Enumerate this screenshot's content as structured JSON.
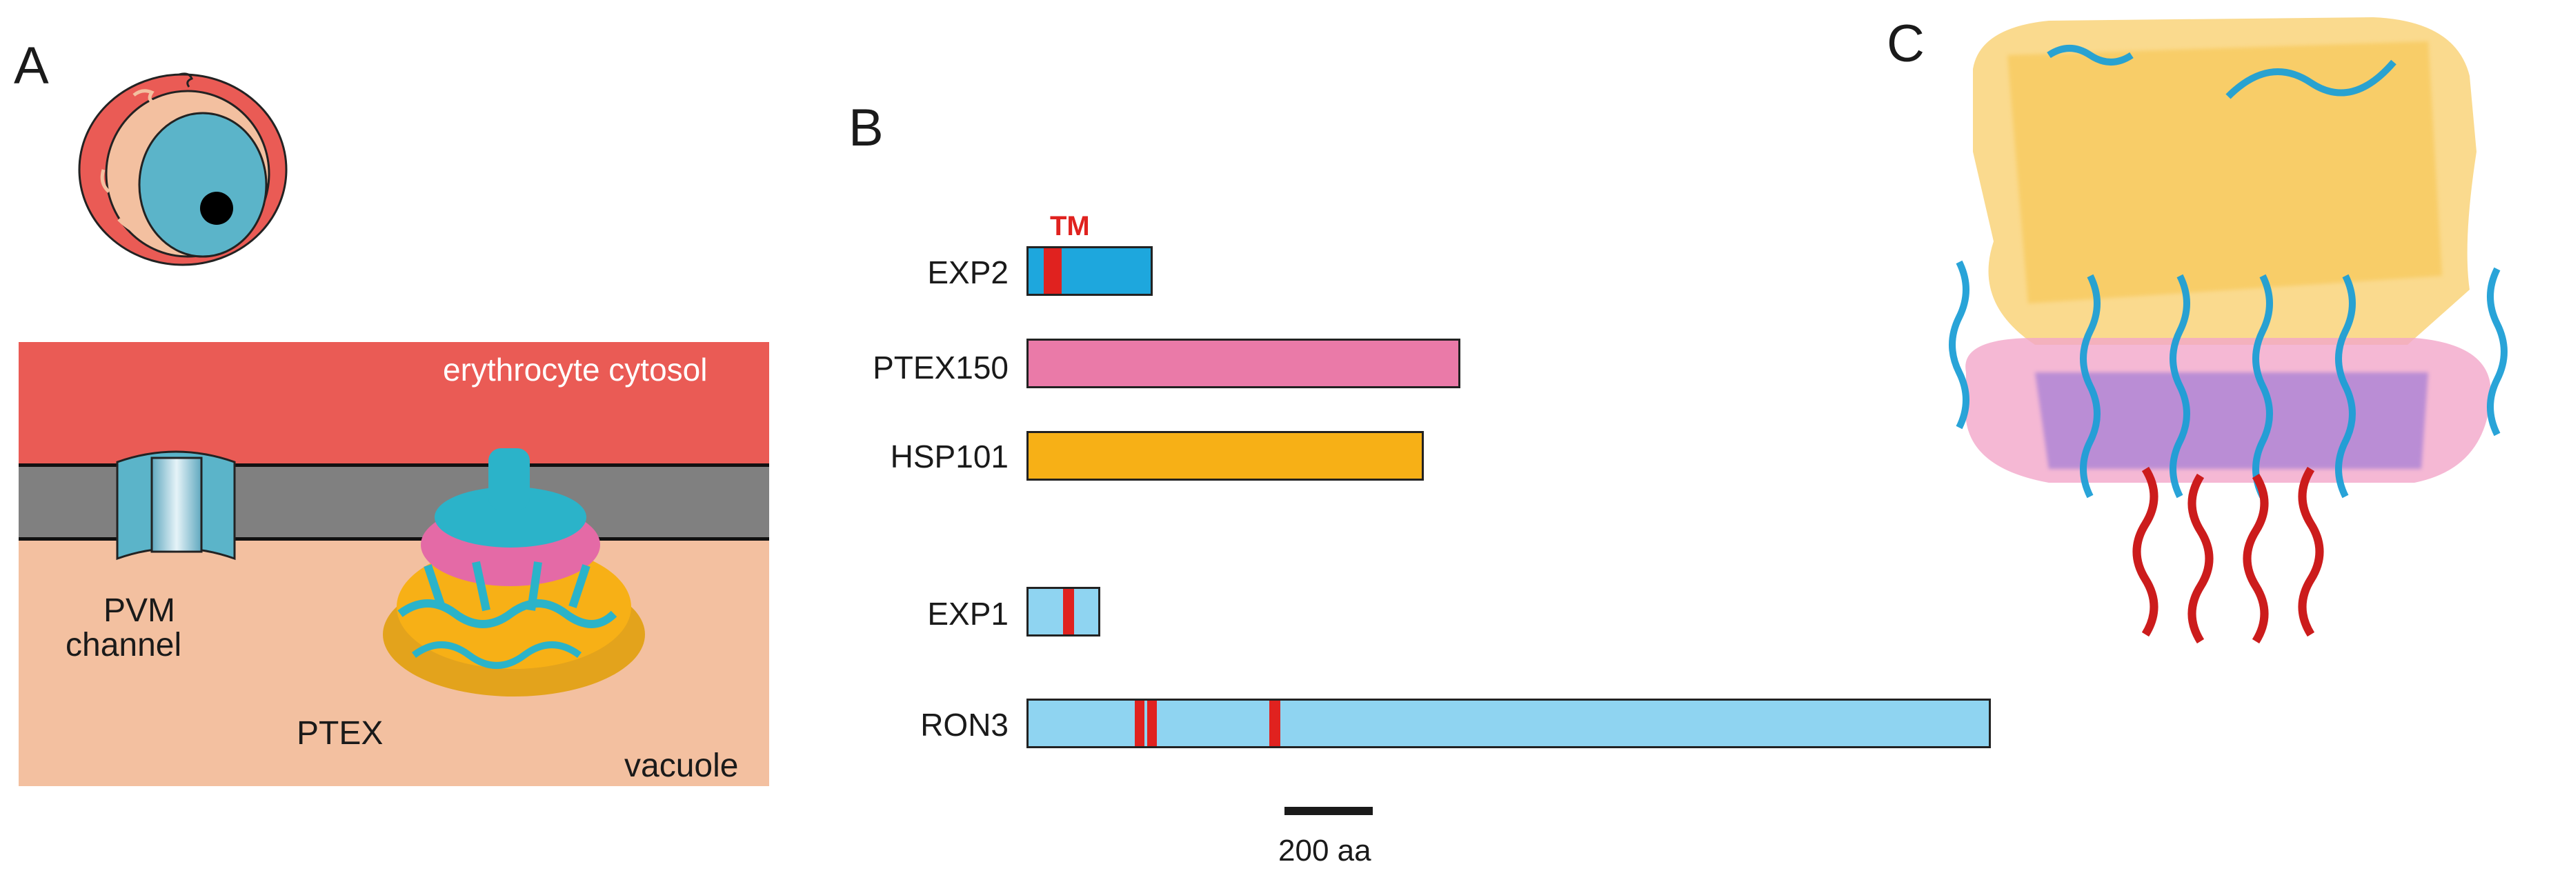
{
  "panels": {
    "a": "A",
    "b": "B",
    "c": "C"
  },
  "panel_a": {
    "erythrocyte_label": "erythrocyte cytosol",
    "pvm_label_line1": "PVM",
    "pvm_label_line2": "channel",
    "ptex_label": "PTEX",
    "vacuole_label": "vacuole"
  },
  "panel_b": {
    "tm_label": "TM",
    "scale_bar_label": "200 aa",
    "proteins": [
      {
        "name": "EXP2",
        "color": "#1ea7dd"
      },
      {
        "name": "PTEX150",
        "color": "#ea7aa8"
      },
      {
        "name": "HSP101",
        "color": "#f7b016"
      },
      {
        "name": "EXP1",
        "color": "#8fd4f1"
      },
      {
        "name": "RON3",
        "color": "#8fd4f1"
      }
    ],
    "tm_color": "#e0221f"
  },
  "colors": {
    "cytosol": "#ea5b55",
    "membrane": "#808080",
    "vacuole": "#f3c0a0",
    "parasite": "#5bb4c9",
    "hsp101": "#f7b016",
    "ptex150": "#e46aa6",
    "exp2": "#1d9fd6",
    "exp1_helix": "#cc1c1c"
  }
}
